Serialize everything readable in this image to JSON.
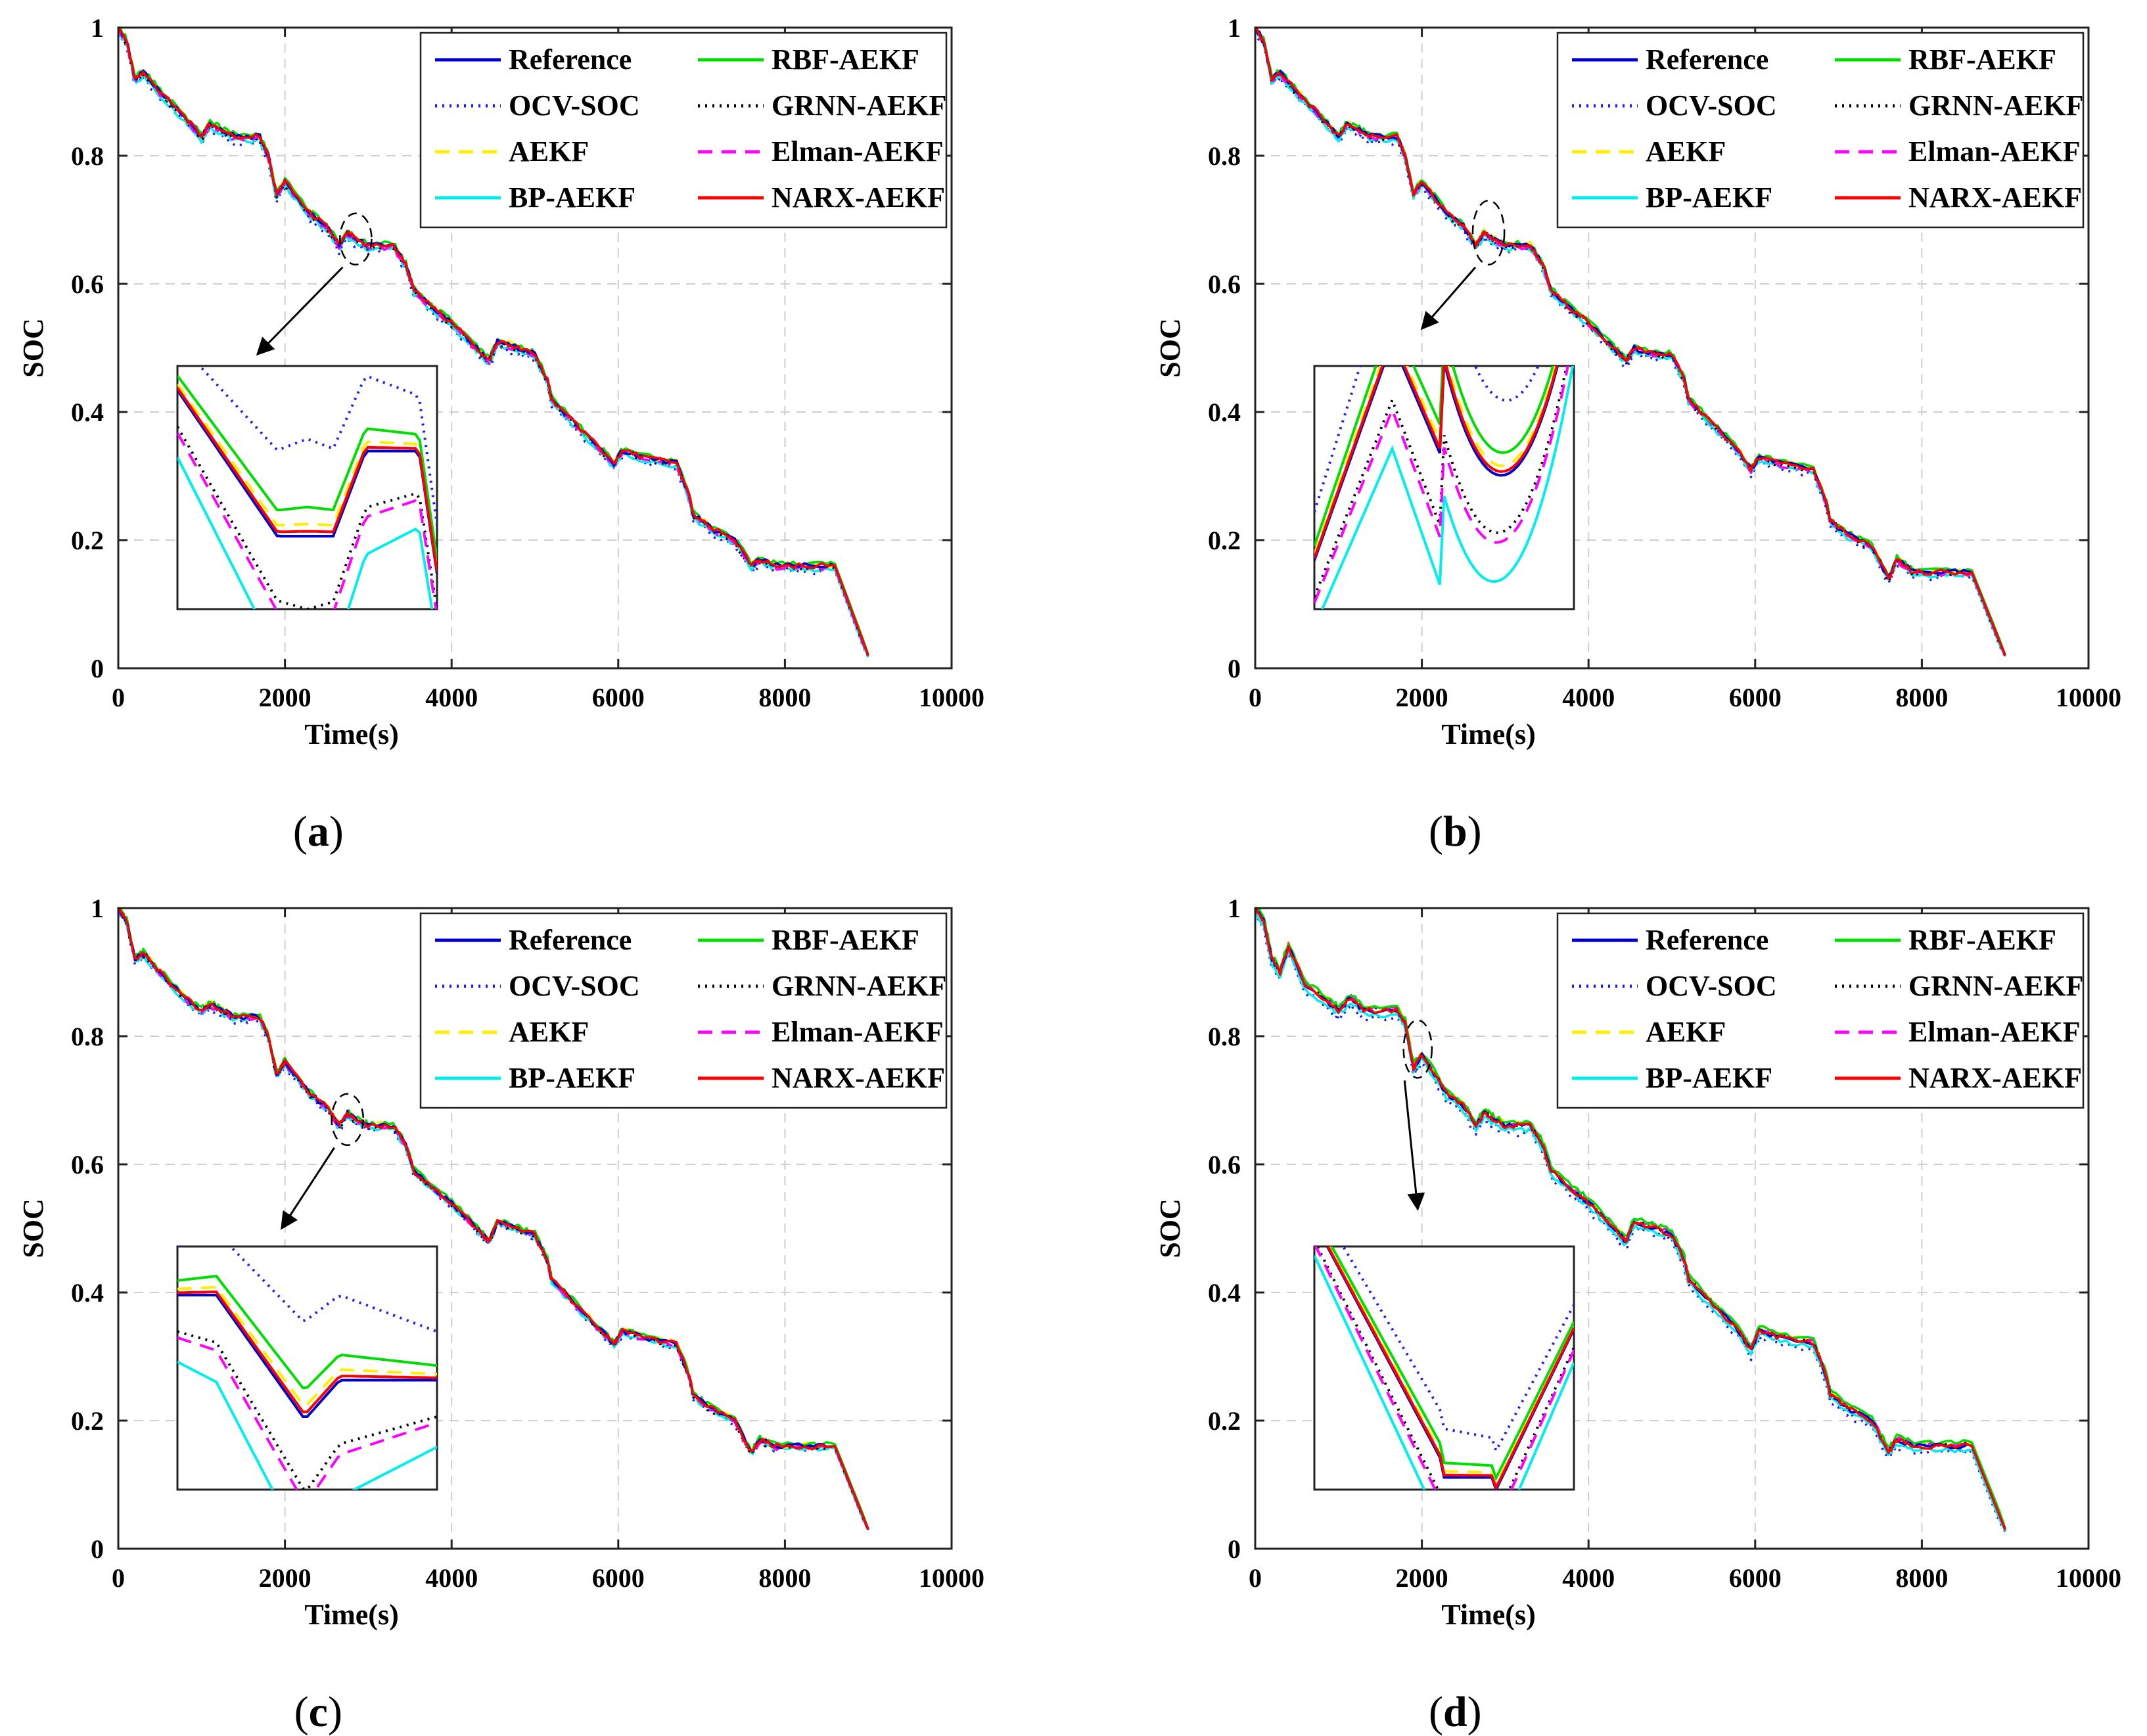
{
  "panels": [
    {
      "id": "a",
      "caption": "a",
      "inset": {
        "target_x": 2850,
        "target_y": 0.67,
        "sel_rx": 190,
        "sel_ry": 0.04,
        "arrow_to": [
          1670,
          0.49
        ]
      }
    },
    {
      "id": "b",
      "caption": "b",
      "inset": {
        "target_x": 2800,
        "target_y": 0.68,
        "sel_rx": 190,
        "sel_ry": 0.05,
        "arrow_to": [
          2000,
          0.53
        ]
      }
    },
    {
      "id": "c",
      "caption": "c",
      "inset": {
        "target_x": 2750,
        "target_y": 0.67,
        "sel_rx": 190,
        "sel_ry": 0.04,
        "arrow_to": [
          1960,
          0.5
        ]
      }
    },
    {
      "id": "d",
      "caption": "d",
      "inset": {
        "target_x": 1950,
        "target_y": 0.78,
        "sel_rx": 170,
        "sel_ry": 0.045,
        "arrow_to": [
          1950,
          0.53
        ]
      }
    }
  ],
  "legend": {
    "placement": "top-right",
    "entries": [
      {
        "label": "Reference",
        "color": "#0000cc",
        "dash": "solid"
      },
      {
        "label": "RBF-AEKF",
        "color": "#00dd00",
        "dash": "solid"
      },
      {
        "label": "OCV-SOC",
        "color": "#1a1aff",
        "dash": "dotted"
      },
      {
        "label": "GRNN-AEKF",
        "color": "#000000",
        "dash": "dotted"
      },
      {
        "label": "AEKF",
        "color": "#ffee00",
        "dash": "dashed"
      },
      {
        "label": "Elman-AEKF",
        "color": "#ff00ff",
        "dash": "dashed"
      },
      {
        "label": "BP-AEKF",
        "color": "#00eeee",
        "dash": "solid"
      },
      {
        "label": "NARX-AEKF",
        "color": "#ff0000",
        "dash": "solid"
      }
    ]
  },
  "chart_data": [
    {
      "type": "line",
      "panel": "a",
      "xlabel": "Time(s)",
      "ylabel": "SOC",
      "xlim": [
        0,
        10000
      ],
      "ylim": [
        0,
        1
      ],
      "xticks": [
        0,
        2000,
        4000,
        6000,
        8000,
        10000
      ],
      "yticks": [
        0,
        0.2,
        0.4,
        0.6,
        0.8,
        1
      ],
      "grid": true,
      "reference_series": {
        "name": "Reference",
        "x": [
          0,
          100,
          200,
          300,
          500,
          800,
          1000,
          1100,
          1250,
          1400,
          1700,
          1800,
          1900,
          2000,
          2300,
          2500,
          2650,
          2750,
          2850,
          3000,
          3300,
          3450,
          3550,
          3800,
          4000,
          4300,
          4450,
          4550,
          4800,
          5000,
          5150,
          5200,
          5500,
          5800,
          5950,
          6050,
          6300,
          6700,
          6850,
          6900,
          7100,
          7400,
          7600,
          7700,
          7900,
          8300,
          8600,
          9000
        ],
        "y": [
          1.0,
          0.98,
          0.92,
          0.93,
          0.9,
          0.86,
          0.83,
          0.85,
          0.84,
          0.83,
          0.83,
          0.8,
          0.74,
          0.76,
          0.71,
          0.69,
          0.66,
          0.68,
          0.67,
          0.66,
          0.66,
          0.63,
          0.59,
          0.56,
          0.54,
          0.5,
          0.48,
          0.51,
          0.5,
          0.49,
          0.45,
          0.42,
          0.38,
          0.34,
          0.32,
          0.34,
          0.33,
          0.32,
          0.27,
          0.24,
          0.22,
          0.2,
          0.16,
          0.17,
          0.16,
          0.16,
          0.16,
          0.02
        ]
      },
      "series": [
        {
          "name": "Reference",
          "offset": 0
        },
        {
          "name": "RBF-AEKF",
          "offset": 0.003
        },
        {
          "name": "OCV-SOC",
          "offset": -0.008
        },
        {
          "name": "GRNN-AEKF",
          "offset": -0.004
        },
        {
          "name": "AEKF",
          "offset": 0.002
        },
        {
          "name": "Elman-AEKF",
          "offset": -0.003
        },
        {
          "name": "BP-AEKF",
          "offset": -0.006
        },
        {
          "name": "NARX-AEKF",
          "offset": 0
        }
      ]
    },
    {
      "type": "line",
      "panel": "b",
      "xlabel": "Time(s)",
      "ylabel": "SOC",
      "xlim": [
        0,
        10000
      ],
      "ylim": [
        0,
        1
      ],
      "xticks": [
        0,
        2000,
        4000,
        6000,
        8000,
        10000
      ],
      "yticks": [
        0,
        0.2,
        0.4,
        0.6,
        0.8,
        1
      ],
      "grid": true,
      "reference_series": {
        "name": "Reference",
        "x": [
          0,
          100,
          200,
          300,
          500,
          800,
          1000,
          1100,
          1250,
          1400,
          1700,
          1800,
          1900,
          2000,
          2300,
          2500,
          2650,
          2750,
          2850,
          3000,
          3300,
          3450,
          3550,
          3800,
          4000,
          4300,
          4450,
          4550,
          4800,
          5000,
          5150,
          5200,
          5500,
          5800,
          5950,
          6050,
          6300,
          6700,
          6850,
          6900,
          7100,
          7400,
          7600,
          7700,
          7900,
          8300,
          8600,
          9000
        ],
        "y": [
          1.0,
          0.98,
          0.92,
          0.93,
          0.9,
          0.86,
          0.83,
          0.85,
          0.84,
          0.83,
          0.83,
          0.8,
          0.74,
          0.76,
          0.71,
          0.69,
          0.66,
          0.68,
          0.67,
          0.66,
          0.66,
          0.63,
          0.59,
          0.56,
          0.54,
          0.5,
          0.48,
          0.5,
          0.49,
          0.49,
          0.45,
          0.42,
          0.38,
          0.34,
          0.31,
          0.33,
          0.32,
          0.31,
          0.26,
          0.23,
          0.21,
          0.19,
          0.14,
          0.17,
          0.15,
          0.15,
          0.15,
          0.02
        ]
      },
      "series": [
        {
          "name": "Reference",
          "offset": 0
        },
        {
          "name": "RBF-AEKF",
          "offset": 0.003
        },
        {
          "name": "OCV-SOC",
          "offset": -0.007
        },
        {
          "name": "GRNN-AEKF",
          "offset": -0.003
        },
        {
          "name": "AEKF",
          "offset": 0.002
        },
        {
          "name": "Elman-AEKF",
          "offset": -0.002
        },
        {
          "name": "BP-AEKF",
          "offset": -0.005
        },
        {
          "name": "NARX-AEKF",
          "offset": 0
        }
      ]
    },
    {
      "type": "line",
      "panel": "c",
      "xlabel": "Time(s)",
      "ylabel": "SOC",
      "xlim": [
        0,
        10000
      ],
      "ylim": [
        0,
        1
      ],
      "xticks": [
        0,
        2000,
        4000,
        6000,
        8000,
        10000
      ],
      "yticks": [
        0,
        0.2,
        0.4,
        0.6,
        0.8,
        1
      ],
      "grid": true,
      "reference_series": {
        "name": "Reference",
        "x": [
          0,
          100,
          200,
          300,
          500,
          800,
          1000,
          1100,
          1250,
          1400,
          1700,
          1800,
          1900,
          2000,
          2300,
          2500,
          2650,
          2750,
          2850,
          3000,
          3300,
          3450,
          3550,
          3800,
          4000,
          4300,
          4450,
          4550,
          4800,
          5000,
          5150,
          5200,
          5500,
          5800,
          5950,
          6050,
          6300,
          6700,
          6850,
          6900,
          7100,
          7400,
          7600,
          7700,
          7900,
          8300,
          8600,
          9000
        ],
        "y": [
          1.0,
          0.98,
          0.92,
          0.93,
          0.9,
          0.86,
          0.84,
          0.85,
          0.84,
          0.83,
          0.83,
          0.8,
          0.74,
          0.76,
          0.71,
          0.69,
          0.66,
          0.68,
          0.67,
          0.66,
          0.66,
          0.63,
          0.59,
          0.56,
          0.54,
          0.5,
          0.48,
          0.51,
          0.5,
          0.49,
          0.45,
          0.42,
          0.38,
          0.34,
          0.32,
          0.34,
          0.33,
          0.32,
          0.27,
          0.24,
          0.22,
          0.2,
          0.15,
          0.17,
          0.16,
          0.16,
          0.16,
          0.03
        ]
      },
      "series": [
        {
          "name": "Reference",
          "offset": 0
        },
        {
          "name": "RBF-AEKF",
          "offset": 0.003
        },
        {
          "name": "OCV-SOC",
          "offset": -0.005
        },
        {
          "name": "GRNN-AEKF",
          "offset": -0.003
        },
        {
          "name": "AEKF",
          "offset": 0.002
        },
        {
          "name": "Elman-AEKF",
          "offset": -0.002
        },
        {
          "name": "BP-AEKF",
          "offset": -0.004
        },
        {
          "name": "NARX-AEKF",
          "offset": 0
        }
      ]
    },
    {
      "type": "line",
      "panel": "d",
      "xlabel": "Time(s)",
      "ylabel": "SOC",
      "xlim": [
        0,
        10000
      ],
      "ylim": [
        0,
        1
      ],
      "xticks": [
        0,
        2000,
        4000,
        6000,
        8000,
        10000
      ],
      "yticks": [
        0,
        0.2,
        0.4,
        0.6,
        0.8,
        1
      ],
      "grid": true,
      "reference_series": {
        "name": "Reference",
        "x": [
          0,
          100,
          200,
          300,
          400,
          600,
          900,
          1000,
          1150,
          1300,
          1700,
          1800,
          1900,
          2000,
          2300,
          2500,
          2650,
          2750,
          2850,
          3000,
          3300,
          3450,
          3550,
          3800,
          4000,
          4300,
          4450,
          4550,
          4800,
          5000,
          5150,
          5200,
          5500,
          5800,
          5950,
          6050,
          6300,
          6700,
          6850,
          6900,
          7100,
          7400,
          7600,
          7700,
          7900,
          8300,
          8600,
          9000
        ],
        "y": [
          1.0,
          0.98,
          0.92,
          0.9,
          0.94,
          0.88,
          0.85,
          0.84,
          0.86,
          0.84,
          0.84,
          0.82,
          0.75,
          0.77,
          0.71,
          0.69,
          0.66,
          0.68,
          0.67,
          0.66,
          0.66,
          0.63,
          0.59,
          0.56,
          0.54,
          0.5,
          0.48,
          0.51,
          0.5,
          0.49,
          0.45,
          0.42,
          0.38,
          0.34,
          0.31,
          0.34,
          0.33,
          0.32,
          0.27,
          0.24,
          0.22,
          0.2,
          0.15,
          0.17,
          0.16,
          0.16,
          0.16,
          0.03
        ]
      },
      "series": [
        {
          "name": "Reference",
          "offset": 0
        },
        {
          "name": "RBF-AEKF",
          "offset": 0.006
        },
        {
          "name": "OCV-SOC",
          "offset": -0.01
        },
        {
          "name": "GRNN-AEKF",
          "offset": 0.002
        },
        {
          "name": "AEKF",
          "offset": 0.004
        },
        {
          "name": "Elman-AEKF",
          "offset": 0.003
        },
        {
          "name": "BP-AEKF",
          "offset": -0.006
        },
        {
          "name": "NARX-AEKF",
          "offset": 0
        }
      ]
    }
  ]
}
